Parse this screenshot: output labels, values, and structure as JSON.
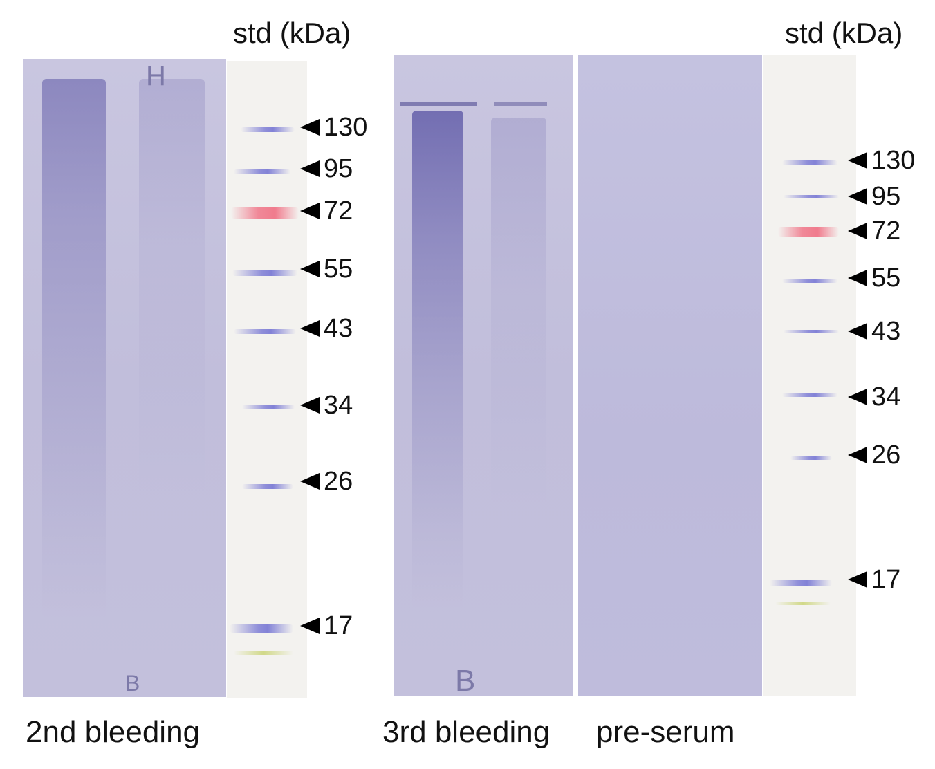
{
  "panels": {
    "left": {
      "std_title": "std (kDa)",
      "caption": "2nd bleeding",
      "lane_marks": {
        "top": "H",
        "bottom": "B"
      },
      "markers": [
        "130",
        "95",
        "72",
        "55",
        "43",
        "34",
        "26",
        "17"
      ]
    },
    "middle": {
      "caption": "3rd bleeding",
      "lane_mark_bottom": "B"
    },
    "right": {
      "std_title": "std (kDa)",
      "caption": "pre-serum",
      "markers": [
        "130",
        "95",
        "72",
        "55",
        "43",
        "34",
        "26",
        "17"
      ]
    }
  },
  "colors": {
    "membrane": "#c3c0dc",
    "smear": "#8d89c0",
    "ladder_bg": "#f3f2ef",
    "prestain_red": "#f07082",
    "text": "#111111"
  }
}
